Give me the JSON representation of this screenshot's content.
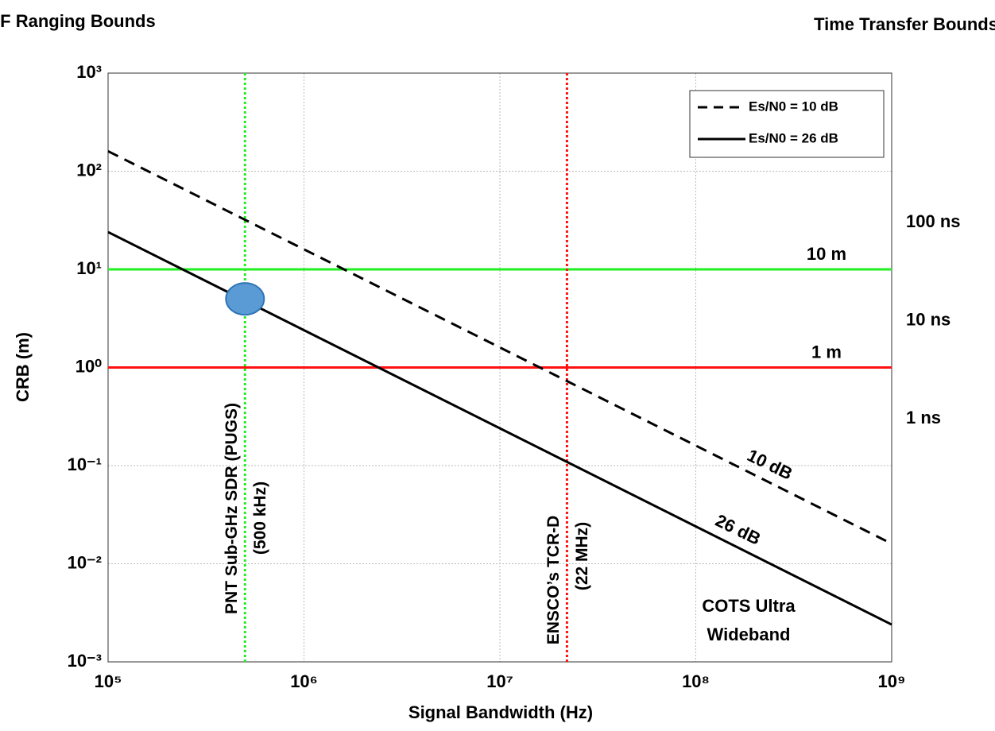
{
  "chart_data": {
    "type": "line",
    "title_left": "RF Ranging Bounds",
    "title_right": "Time Transfer Bounds",
    "xlabel": "Signal Bandwidth (Hz)",
    "ylabel": "CRB (m)",
    "xscale": "log",
    "yscale": "log",
    "grid": true,
    "legend": "upper right",
    "xlim": [
      100000,
      1000000000
    ],
    "xticks": [
      {
        "value": 100000,
        "label": "10⁵"
      },
      {
        "value": 1000000,
        "label": "10⁶"
      },
      {
        "value": 10000000,
        "label": "10⁷"
      },
      {
        "value": 100000000,
        "label": "10⁸"
      },
      {
        "value": 1000000000,
        "label": "10⁹"
      }
    ],
    "ylim": [
      0.001,
      1000
    ],
    "yticks": [
      {
        "value": 0.001,
        "label": "10⁻³"
      },
      {
        "value": 0.01,
        "label": "10⁻²"
      },
      {
        "value": 0.1,
        "label": "10⁻¹"
      },
      {
        "value": 1,
        "label": "10⁰"
      },
      {
        "value": 10,
        "label": "10¹"
      },
      {
        "value": 100,
        "label": "10²"
      },
      {
        "value": 1000,
        "label": "10³"
      }
    ],
    "y2lim": [
      0.0033356,
      3335.6
    ],
    "y2ticks": [
      {
        "value": 1,
        "label": "1 ns"
      },
      {
        "value": 10,
        "label": "10 ns"
      },
      {
        "value": 100,
        "label": "100 ns"
      }
    ],
    "x": [
      100000,
      1000000000
    ],
    "series": [
      {
        "name": "Es/N0 = 10 dB",
        "color": "#000000",
        "dash": true,
        "values": [
          160,
          0.016
        ],
        "label": "10 dB"
      },
      {
        "name": "Es/N0 = 26 dB",
        "color": "#000000",
        "dash": false,
        "values": [
          24,
          0.0024
        ],
        "label": "26 dB"
      }
    ],
    "hlines": [
      {
        "value": 10,
        "color": "#22ee22",
        "label": "10 m"
      },
      {
        "value": 1,
        "color": "#ff1111",
        "label": "1 m"
      }
    ],
    "vlines": [
      {
        "value": 500000,
        "color": "#22ee22",
        "label": "PNT Sub-GHz SDR (PUGS)",
        "sublabel": "(500 kHz)"
      },
      {
        "value": 22000000,
        "color": "#ff1111",
        "label": "ENSCO’s TCR-D",
        "sublabel": "(22 MHz)"
      }
    ],
    "marker": {
      "x": 500000,
      "y": 5,
      "color": "#5b9bd5"
    },
    "annotation": [
      "COTS Ultra",
      "Wideband"
    ]
  }
}
